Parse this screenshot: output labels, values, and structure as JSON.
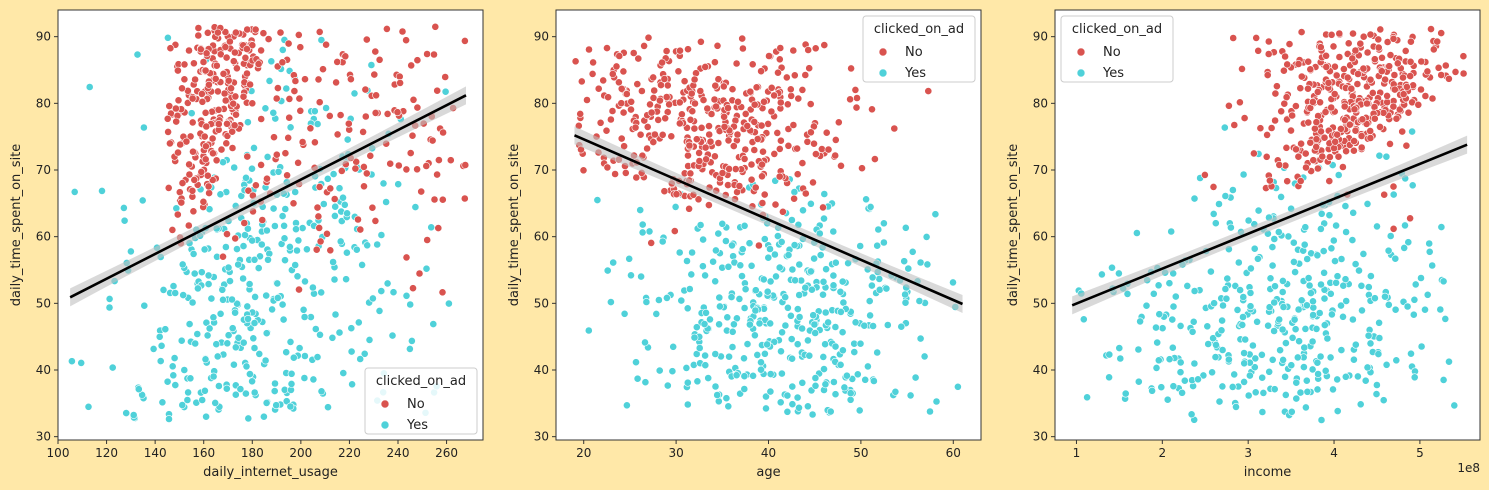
{
  "colors": {
    "background": "#ffe8a8",
    "no": "#d9534f",
    "yes": "#4fd1d9",
    "fit_line": "#000000",
    "ci_band": "#bfbfbf"
  },
  "chart_data": [
    {
      "type": "scatter",
      "xlabel": "daily_internet_usage",
      "ylabel": "daily_time_spent_on_site",
      "xlim": [
        100,
        275
      ],
      "ylim": [
        29.5,
        94
      ],
      "xticks": [
        100,
        120,
        140,
        160,
        180,
        200,
        220,
        240,
        260
      ],
      "yticks": [
        30,
        40,
        50,
        60,
        70,
        80,
        90
      ],
      "tick_offset_label": "",
      "legend": {
        "title": "clicked_on_ad",
        "position": "lower-right",
        "entries": [
          "No",
          "Yes"
        ]
      },
      "regression_line": {
        "x": [
          105,
          268
        ],
        "y": [
          50.9,
          81.2
        ]
      },
      "series": [
        {
          "name": "No",
          "color": "#d9534f",
          "gen": {
            "kind": "disc",
            "cx": 212,
            "cy": 78,
            "rx": 38,
            "ry": 12,
            "n": 420,
            "xmin": 145,
            "xmax": 268,
            "ymin": 47,
            "ymax": 91.5,
            "cut": {
              "slope": -0.95,
              "ref_x": 160,
              "ref_y": 64,
              "side": "above"
            },
            "seed": 11
          }
        },
        {
          "name": "Yes",
          "color": "#4fd1d9",
          "gen": {
            "kind": "disc",
            "cx": 150,
            "cy": 52,
            "rx": 50,
            "ry": 20,
            "n": 420,
            "xmin": 104,
            "xmax": 262,
            "ymin": 32.5,
            "ymax": 90,
            "cut": {
              "slope": -0.95,
              "ref_x": 176,
              "ref_y": 80,
              "side": "below"
            },
            "seed": 23
          }
        }
      ]
    },
    {
      "type": "scatter",
      "xlabel": "age",
      "ylabel": "daily_time_spent_on_site",
      "xlim": [
        17,
        63
      ],
      "ylim": [
        29.5,
        94
      ],
      "xticks": [
        20,
        30,
        40,
        50,
        60
      ],
      "yticks": [
        30,
        40,
        50,
        60,
        70,
        80,
        90
      ],
      "tick_offset_label": "",
      "legend": {
        "title": "clicked_on_ad",
        "position": "upper-right",
        "entries": [
          "No",
          "Yes"
        ]
      },
      "regression_line": {
        "x": [
          19,
          61
        ],
        "y": [
          75.2,
          49.9
        ]
      },
      "series": [
        {
          "name": "No",
          "color": "#d9534f",
          "gen": {
            "kind": "disc",
            "cx": 33,
            "cy": 77,
            "rx": 8,
            "ry": 9,
            "n": 420,
            "xmin": 19,
            "xmax": 60,
            "ymin": 42,
            "ymax": 90,
            "cut": {
              "slope": 0.35,
              "ref_x": 40,
              "ref_y": 62,
              "side": "above"
            },
            "seed": 37
          }
        },
        {
          "name": "Yes",
          "color": "#4fd1d9",
          "gen": {
            "kind": "disc",
            "cx": 42,
            "cy": 48,
            "rx": 9,
            "ry": 11,
            "n": 420,
            "xmin": 20,
            "xmax": 61,
            "ymin": 32.5,
            "ymax": 91.5,
            "cut": {
              "slope": 0.35,
              "ref_x": 40,
              "ref_y": 70,
              "side": "below"
            },
            "seed": 41
          }
        }
      ]
    },
    {
      "type": "scatter",
      "xlabel": "income",
      "ylabel": "daily_time_spent_on_site",
      "xlim": [
        0.75,
        5.7
      ],
      "ylim": [
        29.5,
        94
      ],
      "xticks": [
        1,
        2,
        3,
        4,
        5
      ],
      "yticks": [
        30,
        40,
        50,
        60,
        70,
        80,
        90
      ],
      "tick_offset_label": "1e8",
      "legend": {
        "title": "clicked_on_ad",
        "position": "upper-left",
        "entries": [
          "No",
          "Yes"
        ]
      },
      "regression_line": {
        "x": [
          0.95,
          5.55
        ],
        "y": [
          49.7,
          73.8
        ]
      },
      "series": [
        {
          "name": "No",
          "color": "#d9534f",
          "gen": {
            "kind": "disc",
            "cx": 4.3,
            "cy": 78,
            "rx": 0.6,
            "ry": 9,
            "n": 420,
            "xmin": 2.0,
            "xmax": 5.55,
            "ymin": 48,
            "ymax": 91.5,
            "cut": {
              "slope": -8,
              "ref_x": 3.2,
              "ref_y": 65,
              "side": "above"
            },
            "seed": 53
          }
        },
        {
          "name": "Yes",
          "color": "#4fd1d9",
          "gen": {
            "kind": "disc",
            "cx": 3.3,
            "cy": 47,
            "rx": 1.0,
            "ry": 11,
            "n": 420,
            "xmin": 0.97,
            "xmax": 5.45,
            "ymin": 32.5,
            "ymax": 91.5,
            "cut": {
              "slope": -8,
              "ref_x": 3.9,
              "ref_y": 78,
              "side": "below"
            },
            "seed": 67
          }
        }
      ]
    }
  ]
}
